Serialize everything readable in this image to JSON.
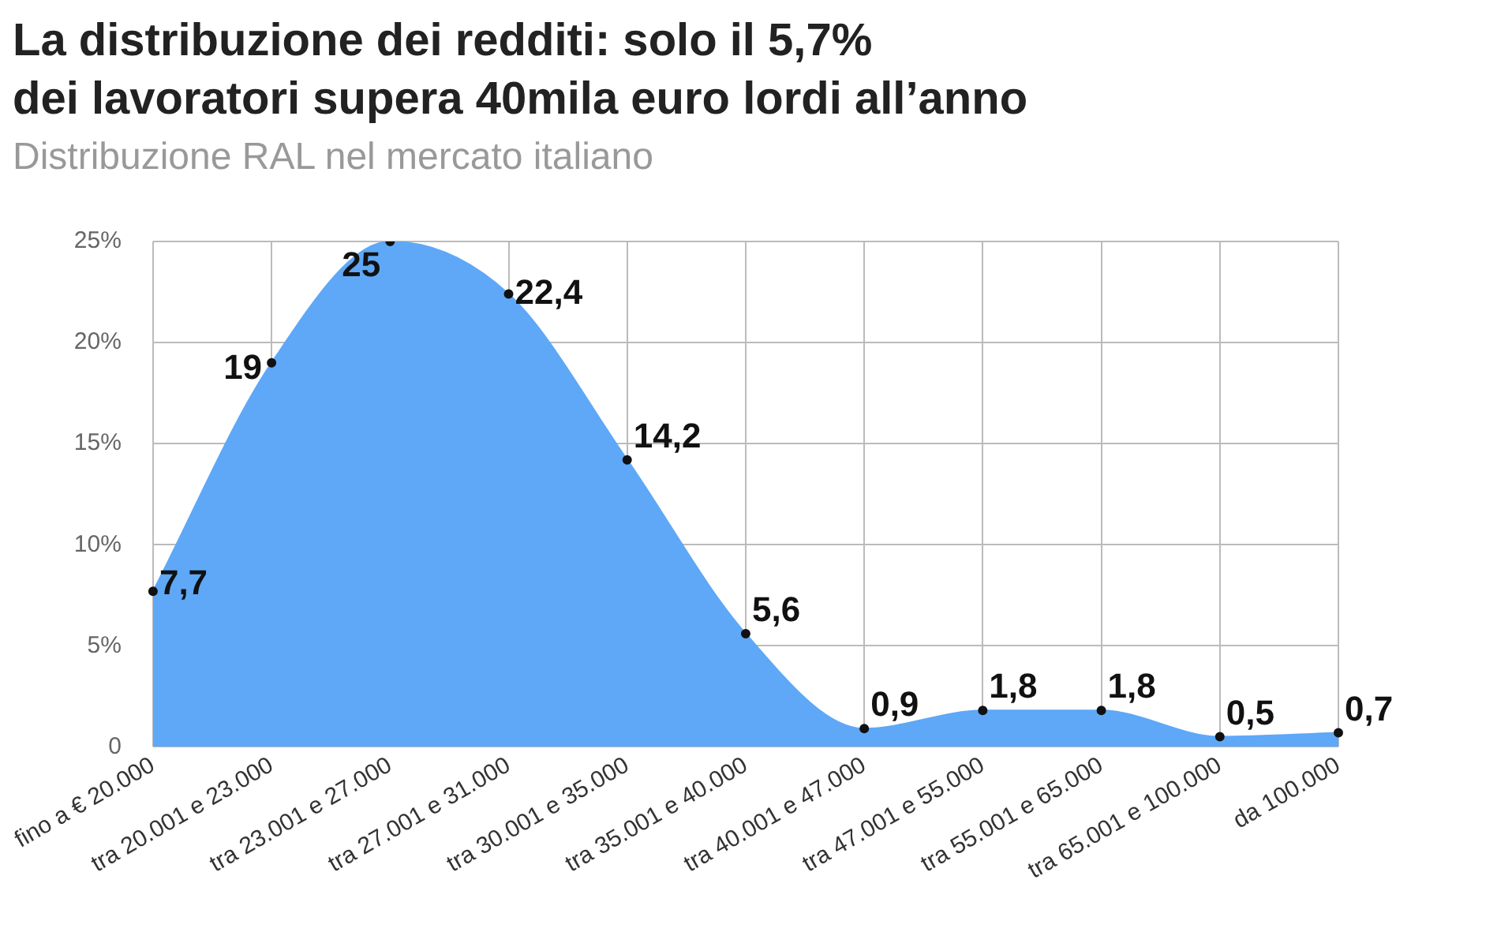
{
  "chart_data": {
    "type": "area",
    "title": "La distribuzione dei redditi: solo il 5,7%\ndei lavoratori supera 40mila euro lordi all’anno",
    "subtitle": "Distribuzione RAL nel mercato italiano",
    "categories": [
      "fino a € 20.000",
      "tra 20.001 e 23.000",
      "tra 23.001 e 27.000",
      "tra 27.001 e 31.000",
      "tra 30.001 e 35.000",
      "tra 35.001 e 40.000",
      "tra 40.001 e 47.000",
      "tra 47.001 e 55.000",
      "tra 55.001 e 65.000",
      "tra 65.001 e 100.000",
      "da 100.000"
    ],
    "series": [
      {
        "color": "#5ea8f7",
        "values": [
          7.7,
          19,
          25,
          22.4,
          14.2,
          5.6,
          0.9,
          1.8,
          1.8,
          0.5,
          0.7
        ],
        "value_labels": [
          "7,7",
          "19",
          "25",
          "22,4",
          "14,2",
          "5,6",
          "0,9",
          "1,8",
          "1,8",
          "0,5",
          "0,7"
        ]
      }
    ],
    "ylim": [
      0,
      25
    ],
    "yticks": [
      {
        "value": 0,
        "label": "0"
      },
      {
        "value": 5,
        "label": "5%"
      },
      {
        "value": 10,
        "label": "10%"
      },
      {
        "value": 15,
        "label": "15%"
      },
      {
        "value": 20,
        "label": "20%"
      },
      {
        "value": 25,
        "label": "25%"
      }
    ],
    "grid": true,
    "legend": false,
    "marker": "circle"
  }
}
